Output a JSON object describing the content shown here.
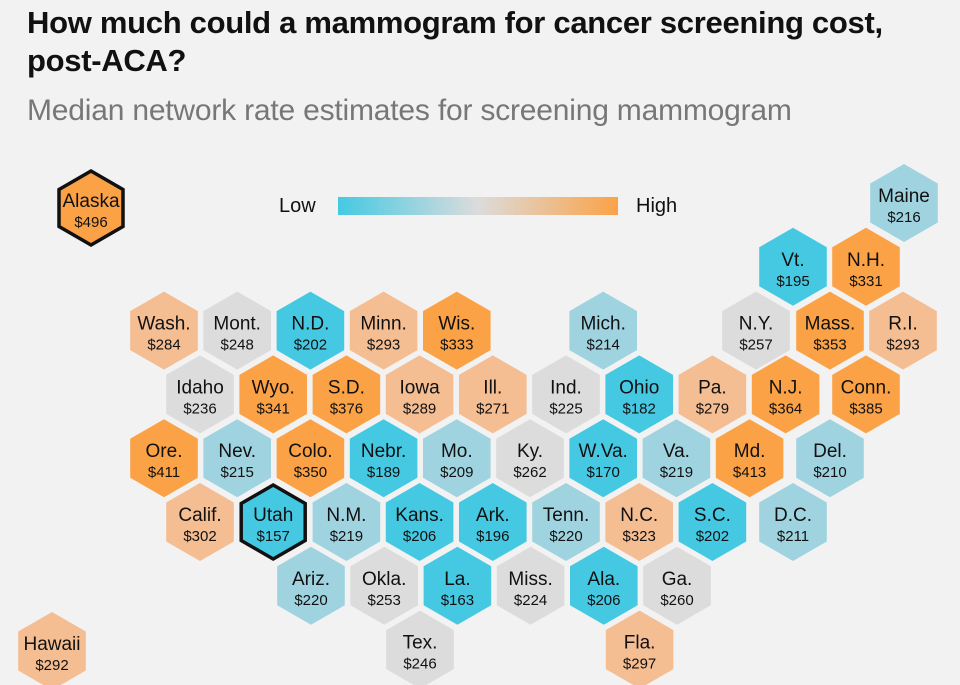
{
  "title": "How much could a mammogram for cancer screening cost, post-ACA?",
  "subtitle": "Median network rate estimates for screening mammogram",
  "legend": {
    "low": "Low",
    "high": "High",
    "colors": [
      "#45c9e3",
      "#dcdcdc",
      "#fba247"
    ]
  },
  "chart_data": {
    "type": "heatmap",
    "title": "How much could a mammogram for cancer screening cost, post-ACA?",
    "subtitle": "Median network rate estimates for screening mammogram",
    "legend": {
      "low": "Low",
      "high": "High",
      "placement": "top-center"
    },
    "highlighted": [
      "Alaska",
      "Utah"
    ],
    "states": [
      {
        "abbr": "Alaska",
        "value": 496,
        "row": 0,
        "col": 0
      },
      {
        "abbr": "Maine",
        "value": 216,
        "row": 0,
        "col": 11
      },
      {
        "abbr": "Vt.",
        "value": 195,
        "row": 1,
        "col": 10
      },
      {
        "abbr": "N.H.",
        "value": 331,
        "row": 1,
        "col": 11
      },
      {
        "abbr": "Wash.",
        "value": 284,
        "row": 2,
        "col": 1
      },
      {
        "abbr": "Mont.",
        "value": 248,
        "row": 2,
        "col": 2
      },
      {
        "abbr": "N.D.",
        "value": 202,
        "row": 2,
        "col": 3
      },
      {
        "abbr": "Minn.",
        "value": 293,
        "row": 2,
        "col": 4
      },
      {
        "abbr": "Wis.",
        "value": 333,
        "row": 2,
        "col": 5
      },
      {
        "abbr": "Mich.",
        "value": 214,
        "row": 2,
        "col": 7
      },
      {
        "abbr": "N.Y.",
        "value": 257,
        "row": 2,
        "col": 9
      },
      {
        "abbr": "Mass.",
        "value": 353,
        "row": 2,
        "col": 10
      },
      {
        "abbr": "R.I.",
        "value": 293,
        "row": 2,
        "col": 11
      },
      {
        "abbr": "Idaho",
        "value": 236,
        "row": 3,
        "col": 1
      },
      {
        "abbr": "Wyo.",
        "value": 341,
        "row": 3,
        "col": 2
      },
      {
        "abbr": "S.D.",
        "value": 376,
        "row": 3,
        "col": 3
      },
      {
        "abbr": "Iowa",
        "value": 289,
        "row": 3,
        "col": 4
      },
      {
        "abbr": "Ill.",
        "value": 271,
        "row": 3,
        "col": 5
      },
      {
        "abbr": "Ind.",
        "value": 225,
        "row": 3,
        "col": 6
      },
      {
        "abbr": "Ohio",
        "value": 182,
        "row": 3,
        "col": 7
      },
      {
        "abbr": "Pa.",
        "value": 279,
        "row": 3,
        "col": 8
      },
      {
        "abbr": "N.J.",
        "value": 364,
        "row": 3,
        "col": 9
      },
      {
        "abbr": "Conn.",
        "value": 385,
        "row": 3,
        "col": 10
      },
      {
        "abbr": "Ore.",
        "value": 411,
        "row": 4,
        "col": 1
      },
      {
        "abbr": "Nev.",
        "value": 215,
        "row": 4,
        "col": 2
      },
      {
        "abbr": "Colo.",
        "value": 350,
        "row": 4,
        "col": 3
      },
      {
        "abbr": "Nebr.",
        "value": 189,
        "row": 4,
        "col": 4
      },
      {
        "abbr": "Mo.",
        "value": 209,
        "row": 4,
        "col": 5
      },
      {
        "abbr": "Ky.",
        "value": 262,
        "row": 4,
        "col": 6
      },
      {
        "abbr": "W.Va.",
        "value": 170,
        "row": 4,
        "col": 7
      },
      {
        "abbr": "Va.",
        "value": 219,
        "row": 4,
        "col": 8
      },
      {
        "abbr": "Md.",
        "value": 413,
        "row": 4,
        "col": 9
      },
      {
        "abbr": "Del.",
        "value": 210,
        "row": 4,
        "col": 10
      },
      {
        "abbr": "Calif.",
        "value": 302,
        "row": 5,
        "col": 1
      },
      {
        "abbr": "Utah",
        "value": 157,
        "row": 5,
        "col": 2
      },
      {
        "abbr": "N.M.",
        "value": 219,
        "row": 5,
        "col": 3
      },
      {
        "abbr": "Kans.",
        "value": 206,
        "row": 5,
        "col": 4
      },
      {
        "abbr": "Ark.",
        "value": 196,
        "row": 5,
        "col": 5
      },
      {
        "abbr": "Tenn.",
        "value": 220,
        "row": 5,
        "col": 6
      },
      {
        "abbr": "N.C.",
        "value": 323,
        "row": 5,
        "col": 7
      },
      {
        "abbr": "S.C.",
        "value": 202,
        "row": 5,
        "col": 8
      },
      {
        "abbr": "D.C.",
        "value": 211,
        "row": 5,
        "col": 9
      },
      {
        "abbr": "Ariz.",
        "value": 220,
        "row": 6,
        "col": 3
      },
      {
        "abbr": "Okla.",
        "value": 253,
        "row": 6,
        "col": 4
      },
      {
        "abbr": "La.",
        "value": 163,
        "row": 6,
        "col": 5
      },
      {
        "abbr": "Miss.",
        "value": 224,
        "row": 6,
        "col": 6
      },
      {
        "abbr": "Ala.",
        "value": 206,
        "row": 6,
        "col": 7
      },
      {
        "abbr": "Ga.",
        "value": 260,
        "row": 6,
        "col": 8
      },
      {
        "abbr": "Hawaii",
        "value": 292,
        "row": 7,
        "col": 0
      },
      {
        "abbr": "Tex.",
        "value": 246,
        "row": 7,
        "col": 5
      },
      {
        "abbr": "Fla.",
        "value": 297,
        "row": 7,
        "col": 8
      }
    ]
  }
}
